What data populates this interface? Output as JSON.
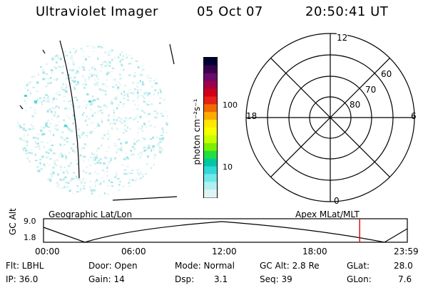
{
  "header": {
    "instrument": "Ultraviolet Imager",
    "date": "05 Oct 07",
    "time": "20:50:41 UT"
  },
  "colorbar": {
    "unit_label": "photon cm⁻²s⁻¹",
    "tick_labels": [
      "100",
      "10"
    ],
    "colors": [
      "#000033",
      "#3a0050",
      "#6a0a6a",
      "#a0004a",
      "#d0001a",
      "#e8201a",
      "#f06a00",
      "#ffaa00",
      "#ffe800",
      "#f6ff00",
      "#c8ff00",
      "#7cf000",
      "#20e040",
      "#00c8a0",
      "#30d8d8",
      "#70e8e8",
      "#b0f0f0",
      "#e0f4f4"
    ]
  },
  "polar": {
    "mlt_labels": {
      "top": "12",
      "left": "18",
      "right": "6",
      "bottom": "0"
    },
    "lat_labels": [
      "60",
      "70",
      "80"
    ]
  },
  "timeline": {
    "y_title": "GC Alt",
    "y_ticks": [
      "9.0",
      "1.8"
    ],
    "left_caption": "Geographic Lat/Lon",
    "right_caption": "Apex MLat/MLT",
    "x_ticks": [
      "00:00",
      "06:00",
      "12:00",
      "18:00",
      "23:59"
    ],
    "marker_color": "#e00000",
    "marker_time_fraction": 0.869
  },
  "info": {
    "flt": "Flt: LBHL",
    "door": "Door: Open",
    "mode": "Mode: Normal",
    "gcalt": "GC Alt: 2.8 Re",
    "glat_label": "GLat:",
    "glat_value": "28.0",
    "ip": "IP: 36.0",
    "gain": "Gain: 14",
    "dsp_label": "Dsp:",
    "dsp_value": "3.1",
    "seq": "Seq: 39",
    "glon_label": "GLon:",
    "glon_value": "7.6"
  }
}
